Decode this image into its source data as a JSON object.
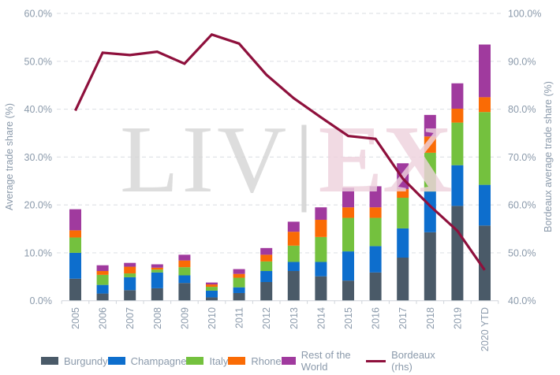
{
  "chart_data": {
    "type": "bar",
    "stacked": true,
    "categories": [
      "2005",
      "2006",
      "2007",
      "2008",
      "2009",
      "2010",
      "2011",
      "2012",
      "2013",
      "2014",
      "2015",
      "2016",
      "2017",
      "2018",
      "2019",
      "2020 YTD"
    ],
    "series": [
      {
        "name": "Burgundy",
        "color": "#4a5a68",
        "values": [
          4.6,
          1.5,
          2.2,
          2.6,
          3.7,
          0.7,
          1.6,
          3.9,
          6.2,
          5.1,
          4.2,
          5.9,
          9.0,
          14.3,
          19.8,
          15.7
        ]
      },
      {
        "name": "Champagne",
        "color": "#0d6ecd",
        "values": [
          5.4,
          1.8,
          2.7,
          3.3,
          1.6,
          1.4,
          1.2,
          2.3,
          1.9,
          3.0,
          6.1,
          5.5,
          6.1,
          8.5,
          8.5,
          8.5
        ]
      },
      {
        "name": "Italy",
        "color": "#74c13e",
        "values": [
          3.2,
          2.1,
          0.8,
          0.6,
          1.7,
          0.8,
          2.0,
          2.0,
          3.4,
          5.2,
          7.0,
          5.9,
          6.4,
          8.1,
          8.9,
          15.2
        ]
      },
      {
        "name": "Rhone",
        "color": "#fa6b05",
        "values": [
          1.5,
          0.8,
          1.4,
          0.4,
          1.4,
          0.5,
          0.8,
          1.4,
          2.9,
          3.6,
          2.2,
          2.2,
          1.8,
          3.4,
          2.9,
          3.1
        ]
      },
      {
        "name": "Rest of the World",
        "color": "#a03a9e",
        "values": [
          4.4,
          1.2,
          0.8,
          0.7,
          1.2,
          0.4,
          1.0,
          1.4,
          2.1,
          2.6,
          4.1,
          4.4,
          5.4,
          4.5,
          5.3,
          11.0
        ]
      }
    ],
    "line_series": {
      "name": "Bordeaux (rhs)",
      "color": "#8e103c",
      "axis": "right",
      "values": [
        79.7,
        91.8,
        91.3,
        92.0,
        89.5,
        95.6,
        93.7,
        87.2,
        82.3,
        78.3,
        74.4,
        73.8,
        65.5,
        59.8,
        54.6,
        46.4
      ]
    },
    "left_axis": {
      "label": "Average trade share (%)",
      "min": 0,
      "max": 60,
      "tick_step": 10,
      "ticks": [
        "0.0%",
        "10.0%",
        "20.0%",
        "30.0%",
        "40.0%",
        "50.0%",
        "60.0%"
      ]
    },
    "right_axis": {
      "label": "Bordeaux average trade share (%)",
      "min": 40,
      "max": 100,
      "tick_step": 10,
      "ticks": [
        "40.0%",
        "50.0%",
        "60.0%",
        "70.0%",
        "80.0%",
        "90.0%",
        "100.0%"
      ]
    },
    "grid": {
      "horizontal": true,
      "style": "dashed"
    },
    "legend_position": "bottom",
    "watermark": {
      "text_left": "LIV",
      "separator": "|",
      "text_right": "EX",
      "color_left": "#d6d6d6",
      "color_separator": "#d0d0d0",
      "color_right": "#eed3de"
    }
  },
  "colors": {
    "background": "#ffffff",
    "tick_label": "#8b9aab",
    "axis_title": "#8b9aab",
    "legend_text": "#8b9aab",
    "gridline": "#e0e3e7",
    "axis_line": "#cfd4da"
  }
}
